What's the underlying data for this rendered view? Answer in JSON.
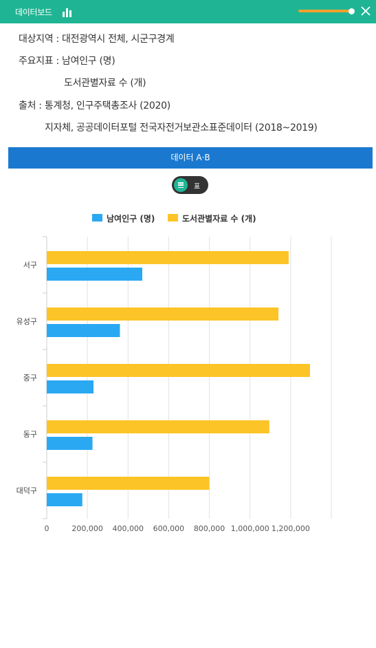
{
  "header": {
    "title": "데이터보드",
    "chart_icon": "bar-chart-icon",
    "slider_level": 1.0,
    "close_icon": "close-icon",
    "accent_color": "#1fb594",
    "slider_color": "#f3a12c"
  },
  "meta": {
    "region": "대상지역 : 대전광역시 전체, 시군구경계",
    "indicator_1": "주요지표 : 남여인구 (명)",
    "indicator_2": "도서관별자료 수 (개)",
    "source_1": "출처 : 통계청, 인구주택총조사 (2020)",
    "source_2": "지자체, 공공데이터포털 전국자전거보관소표준데이터 (2018~2019)"
  },
  "banner": {
    "label": "데이터 A·B",
    "color": "#1a79cf"
  },
  "toggle": {
    "icon": "list-icon",
    "label": "표"
  },
  "chart_data": {
    "type": "bar",
    "orientation": "horizontal",
    "categories": [
      "서구",
      "유성구",
      "중구",
      "동구",
      "대덕구"
    ],
    "series": [
      {
        "name": "남여인구 (명)",
        "color": "#2aa8f2",
        "values": [
          470000,
          360000,
          230000,
          225000,
          175000
        ]
      },
      {
        "name": "도서관별자료 수 (개)",
        "color": "#fdc427",
        "values": [
          1190000,
          1140000,
          1295000,
          1095000,
          800000
        ]
      }
    ],
    "xlim": [
      0,
      1400000
    ],
    "xticks": [
      0,
      200000,
      400000,
      600000,
      800000,
      1000000,
      1200000
    ],
    "xtick_labels": [
      "0",
      "200,000",
      "400,000",
      "600,000",
      "800,000",
      "1,000,000",
      "1,200,000"
    ],
    "grid": true,
    "legend": "top-center"
  }
}
